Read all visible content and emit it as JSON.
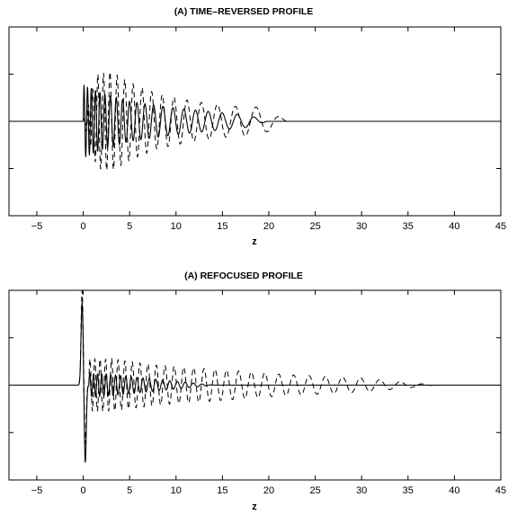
{
  "chart_data": [
    {
      "type": "line",
      "title": "(A) TIME–REVERSED  PROFILE",
      "xlabel": "z",
      "ylabel": "",
      "xlim": [
        -8,
        45
      ],
      "ylim": [
        -2,
        2
      ],
      "x_ticks": [
        -5,
        0,
        5,
        10,
        15,
        20,
        25,
        30,
        35,
        40,
        45
      ],
      "y_ticks": [
        -1,
        0,
        1
      ],
      "y_tick_labels_shown": false,
      "grid": false,
      "series": [
        {
          "style": "solid",
          "model": "chirped decaying oscillation",
          "start": 0,
          "end": 19.8,
          "envelope": [
            [
              0,
              0.78
            ],
            [
              2,
              0.6
            ],
            [
              5,
              0.42
            ],
            [
              10,
              0.28
            ],
            [
              15,
              0.18
            ],
            [
              18,
              0.12
            ],
            [
              19.8,
              0.0
            ]
          ],
          "wavelength": [
            [
              0,
              0.35
            ],
            [
              3,
              0.62
            ],
            [
              8,
              1.0
            ],
            [
              12,
              1.3
            ],
            [
              17,
              1.75
            ],
            [
              19.8,
              2.2
            ]
          ]
        },
        {
          "style": "dashed",
          "model": "chirped decaying oscillation",
          "start": 0,
          "end": 22.2,
          "envelope": [
            [
              0,
              0.0
            ],
            [
              1.5,
              1.0
            ],
            [
              3,
              1.05
            ],
            [
              5,
              0.82
            ],
            [
              8,
              0.58
            ],
            [
              12,
              0.42
            ],
            [
              16,
              0.32
            ],
            [
              19,
              0.3
            ],
            [
              22.2,
              0.0
            ]
          ],
          "wavelength": [
            [
              0,
              0.4
            ],
            [
              3,
              0.75
            ],
            [
              7,
              1.05
            ],
            [
              11,
              1.45
            ],
            [
              16,
              2.0
            ],
            [
              20,
              2.6
            ],
            [
              22.2,
              3.0
            ]
          ]
        }
      ]
    },
    {
      "type": "line",
      "title": "(A) REFOCUSED  PROFILE",
      "xlabel": "z",
      "ylabel": "",
      "xlim": [
        -8,
        45
      ],
      "ylim": [
        -2,
        2
      ],
      "x_ticks": [
        -5,
        0,
        5,
        10,
        15,
        20,
        25,
        30,
        35,
        40,
        45
      ],
      "y_ticks": [
        -1,
        0,
        1
      ],
      "y_tick_labels_shown": false,
      "grid": false,
      "series": [
        {
          "style": "solid",
          "model": "refocused pulse with small tail",
          "spike": {
            "x": 0,
            "peak": 1.75,
            "trough": -1.65
          },
          "tail_start": 0.6,
          "tail_end": 14,
          "tail_envelope": [
            [
              0.6,
              0.25
            ],
            [
              3,
              0.22
            ],
            [
              8,
              0.12
            ],
            [
              14,
              0.0
            ]
          ],
          "tail_wavelength": [
            [
              0.6,
              0.4
            ],
            [
              14,
              1.0
            ]
          ]
        },
        {
          "style": "dashed",
          "model": "refocused pulse with long tail",
          "spike": {
            "x": 0,
            "peak": 2.0,
            "trough": -1.25
          },
          "tail_start": 0.6,
          "tail_end": 38,
          "tail_envelope": [
            [
              0.6,
              0.55
            ],
            [
              3,
              0.55
            ],
            [
              8,
              0.42
            ],
            [
              15,
              0.32
            ],
            [
              22,
              0.22
            ],
            [
              30,
              0.15
            ],
            [
              38,
              0.0
            ]
          ],
          "tail_wavelength": [
            [
              0.6,
              0.5
            ],
            [
              5,
              0.8
            ],
            [
              12,
              1.1
            ],
            [
              20,
              1.5
            ],
            [
              30,
              2.0
            ],
            [
              38,
              2.6
            ]
          ]
        }
      ]
    }
  ]
}
